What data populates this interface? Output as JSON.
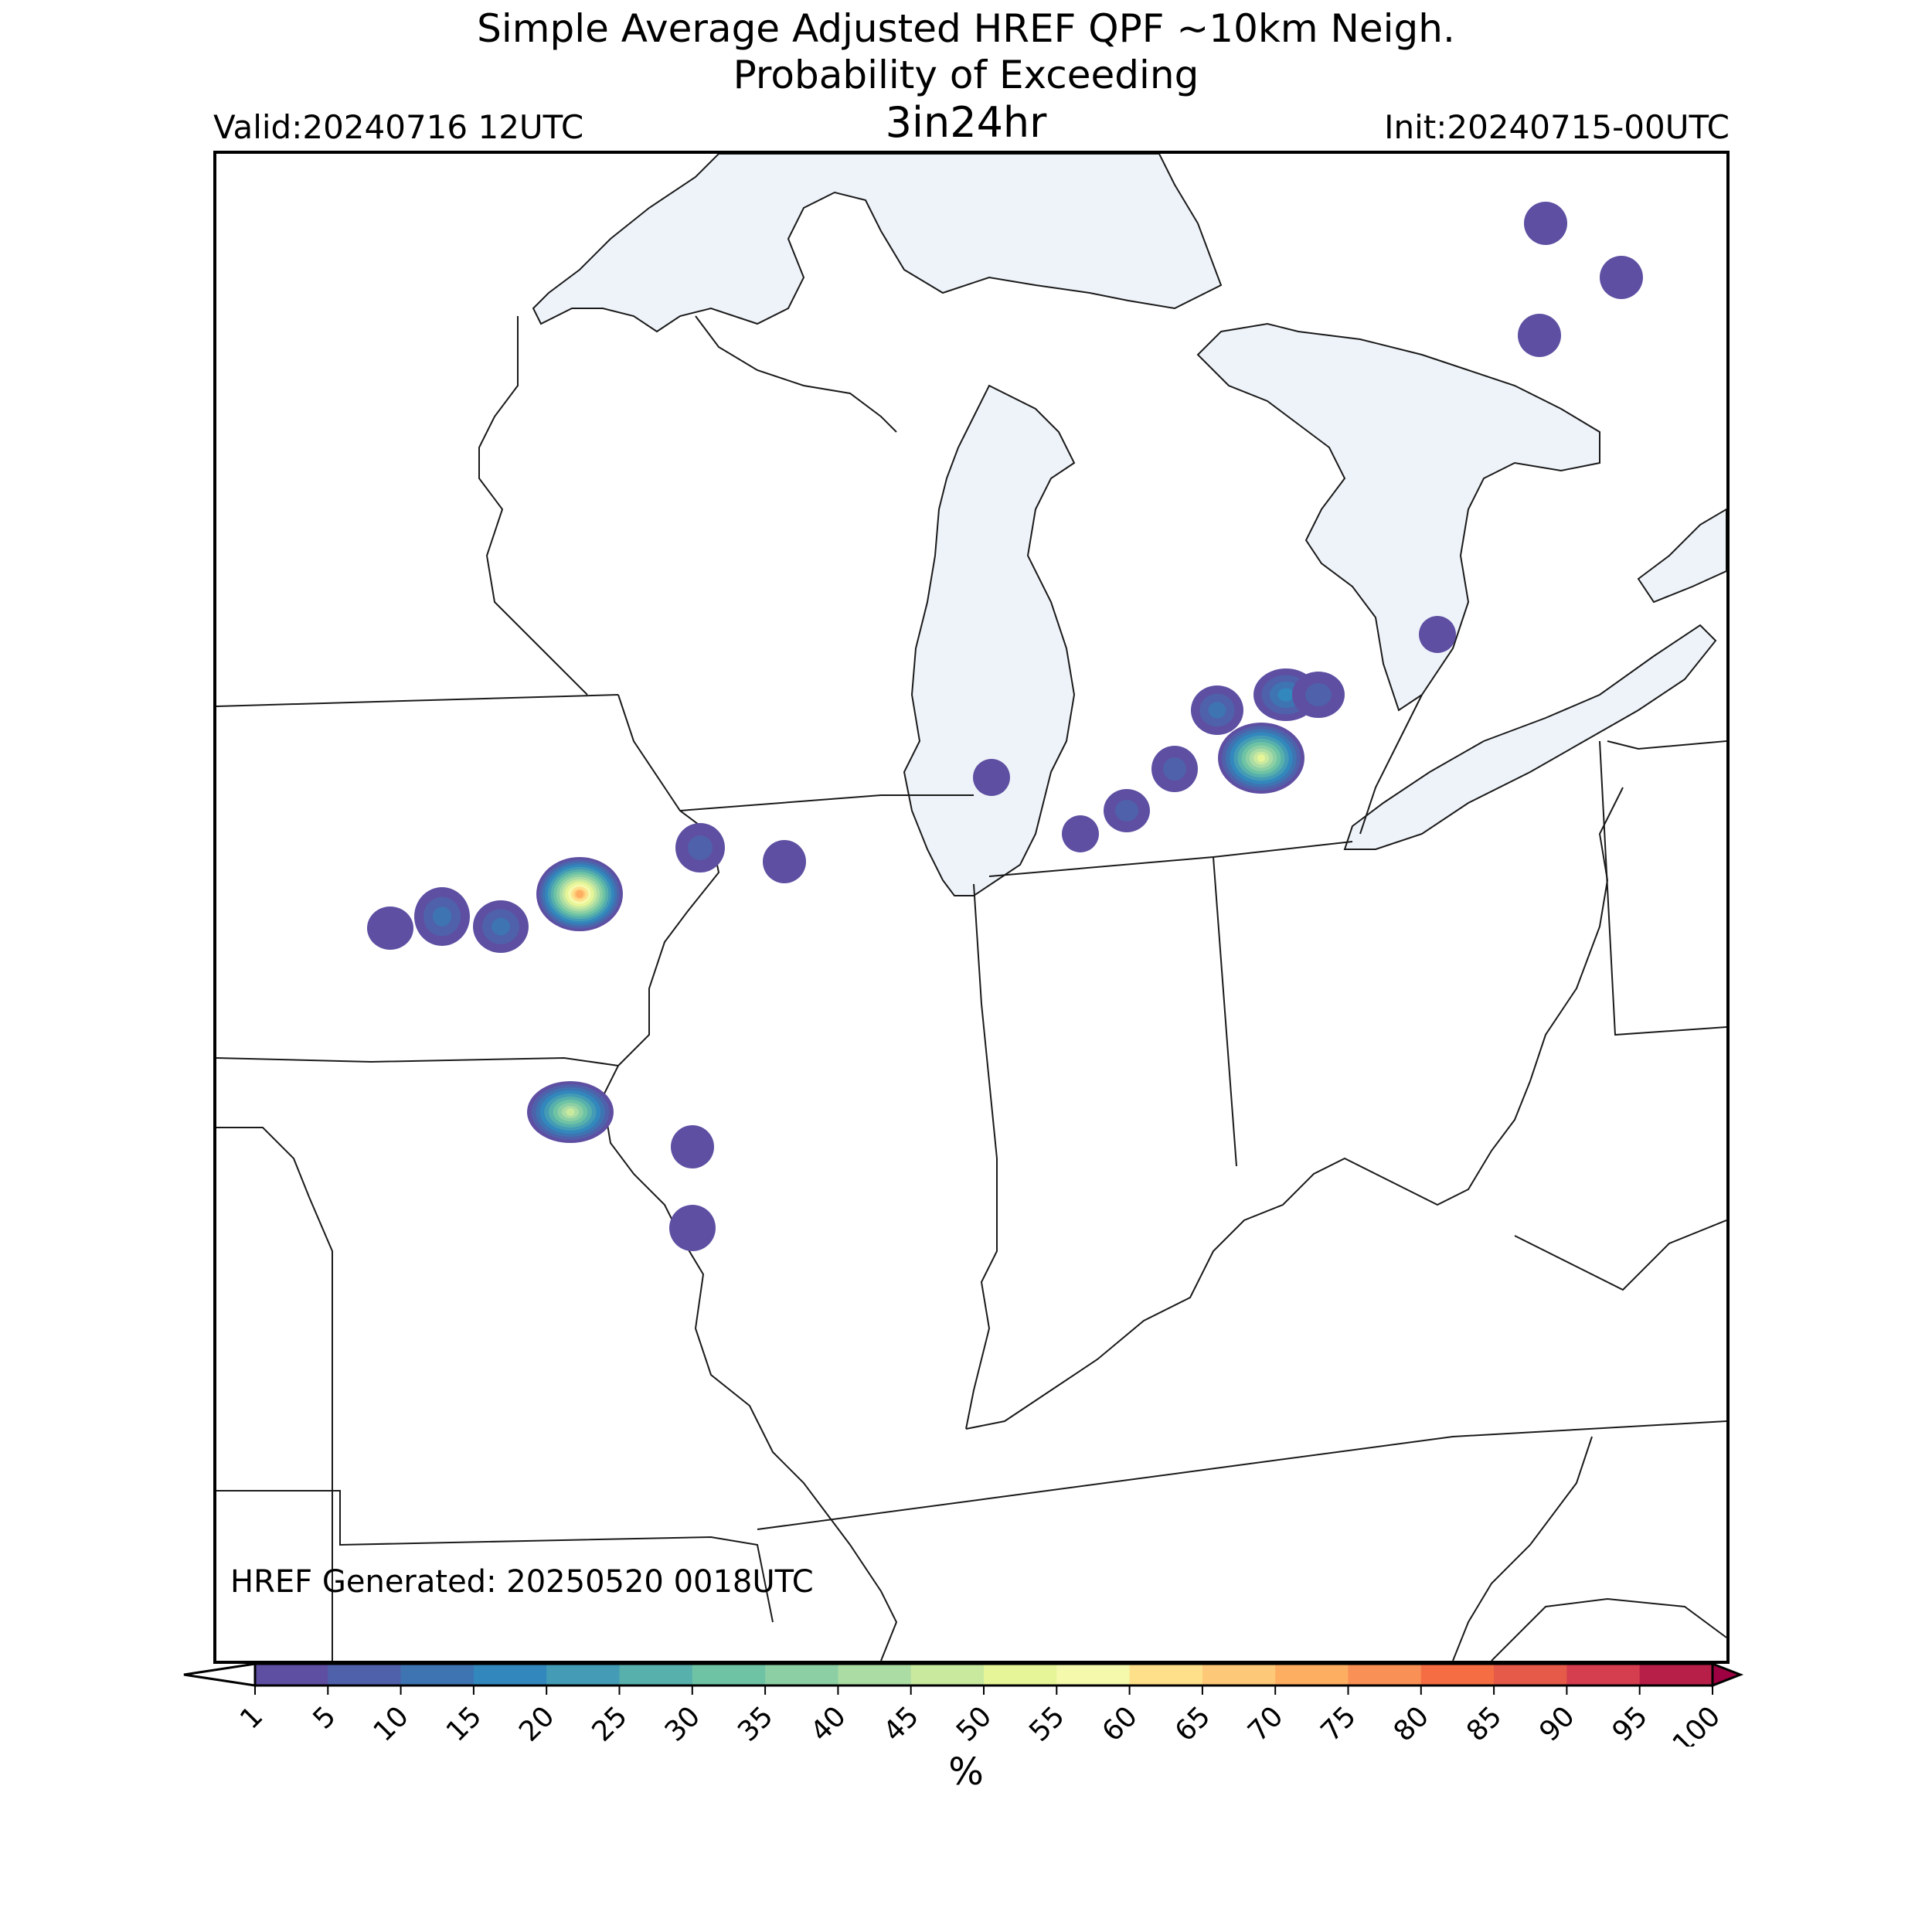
{
  "title": {
    "line1": "Simple Average Adjusted HREF QPF ~10km Neigh.",
    "line2": "Probability of Exceeding",
    "line3": "3in24hr"
  },
  "valid": "Valid:20240716 12UTC",
  "init": "Init:20240715-00UTC",
  "generated": "HREF Generated: 20250520 0018UTC",
  "colorbar": {
    "unit": "%",
    "ticks": [
      "1",
      "5",
      "10",
      "15",
      "20",
      "25",
      "30",
      "35",
      "40",
      "45",
      "50",
      "55",
      "60",
      "65",
      "70",
      "75",
      "80",
      "85",
      "90",
      "95",
      "100"
    ],
    "colors": [
      "#5e4fa2",
      "#4f61aa",
      "#3e74b2",
      "#3288bd",
      "#439bb5",
      "#57b0ab",
      "#6ec3a5",
      "#8ccfa4",
      "#abdca4",
      "#c9e99f",
      "#e6f598",
      "#f4f9ab",
      "#fee08b",
      "#fdc877",
      "#fdae61",
      "#f99055",
      "#f46d43",
      "#e55a48",
      "#d53e4f",
      "#b81f48",
      "#9e0142"
    ],
    "under_color": "#ffffff",
    "over_color": "#9e0142"
  },
  "map": {
    "lake_color": "#eef3fa",
    "border_color": "#1a1a1a",
    "features": [
      "Lake Superior",
      "Lake Michigan",
      "Lake Huron",
      "Lake Erie",
      "Georgian Bay",
      "Lake Ontario",
      "state borders"
    ]
  },
  "chart_data": {
    "type": "heatmap",
    "quantity": "Probability of Exceeding 3in24hr",
    "unit": "%",
    "approx_max_probabilities": [
      {
        "area": "northern Iowa (west)",
        "max": 5
      },
      {
        "area": "northern Iowa (central)",
        "max": 15
      },
      {
        "area": "northern Iowa (central-east)",
        "max": 15
      },
      {
        "area": "northeastern Iowa",
        "max": 75
      },
      {
        "area": "northwestern Illinois",
        "max": 10
      },
      {
        "area": "northern Illinois",
        "max": 5
      },
      {
        "area": "southwestern Lake Michigan",
        "max": 5
      },
      {
        "area": "southwestern Michigan",
        "max": 5
      },
      {
        "area": "southern Michigan",
        "max": 10
      },
      {
        "area": "south-central Michigan",
        "max": 10
      },
      {
        "area": "central Michigan",
        "max": 15
      },
      {
        "area": "central Michigan (main)",
        "max": 55
      },
      {
        "area": "mid-Michigan (north)",
        "max": 20
      },
      {
        "area": "mid-Michigan (northeast)",
        "max": 10
      },
      {
        "area": "Thumb / Lake Huron shore",
        "max": 5
      },
      {
        "area": "northeastern Missouri",
        "max": 50
      },
      {
        "area": "west-central Illinois",
        "max": 5
      },
      {
        "area": "Mississippi River near St. Louis",
        "max": 5
      },
      {
        "area": "Ontario (north 1)",
        "max": 5
      },
      {
        "area": "Ontario (north 2)",
        "max": 5
      },
      {
        "area": "Ontario (north 3)",
        "max": 5
      }
    ]
  }
}
